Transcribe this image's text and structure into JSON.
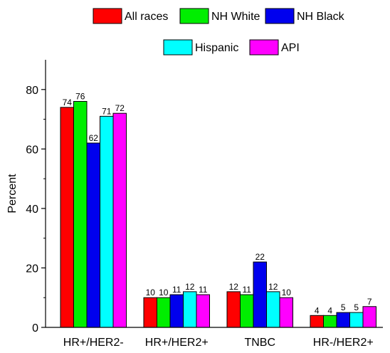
{
  "chart_data": {
    "type": "bar",
    "ylabel": "Percent",
    "xlabel": "",
    "ylim": [
      0,
      90
    ],
    "yticks": [
      0,
      20,
      40,
      60,
      80
    ],
    "categories": [
      "HR+/HER2-",
      "HR+/HER2+",
      "TNBC",
      "HR-/HER2+"
    ],
    "series": [
      {
        "name": "All races",
        "color": "#ff0000",
        "values": [
          74,
          10,
          12,
          4
        ]
      },
      {
        "name": "NH White",
        "color": "#00ee00",
        "values": [
          76,
          10,
          11,
          4
        ]
      },
      {
        "name": "NH Black",
        "color": "#0000ee",
        "values": [
          62,
          11,
          22,
          5
        ]
      },
      {
        "name": "Hispanic",
        "color": "#00ffff",
        "values": [
          71,
          12,
          12,
          5
        ]
      },
      {
        "name": "API",
        "color": "#ff00ff",
        "values": [
          72,
          11,
          10,
          7
        ]
      }
    ],
    "legend_position": "top-right",
    "grid": false
  }
}
